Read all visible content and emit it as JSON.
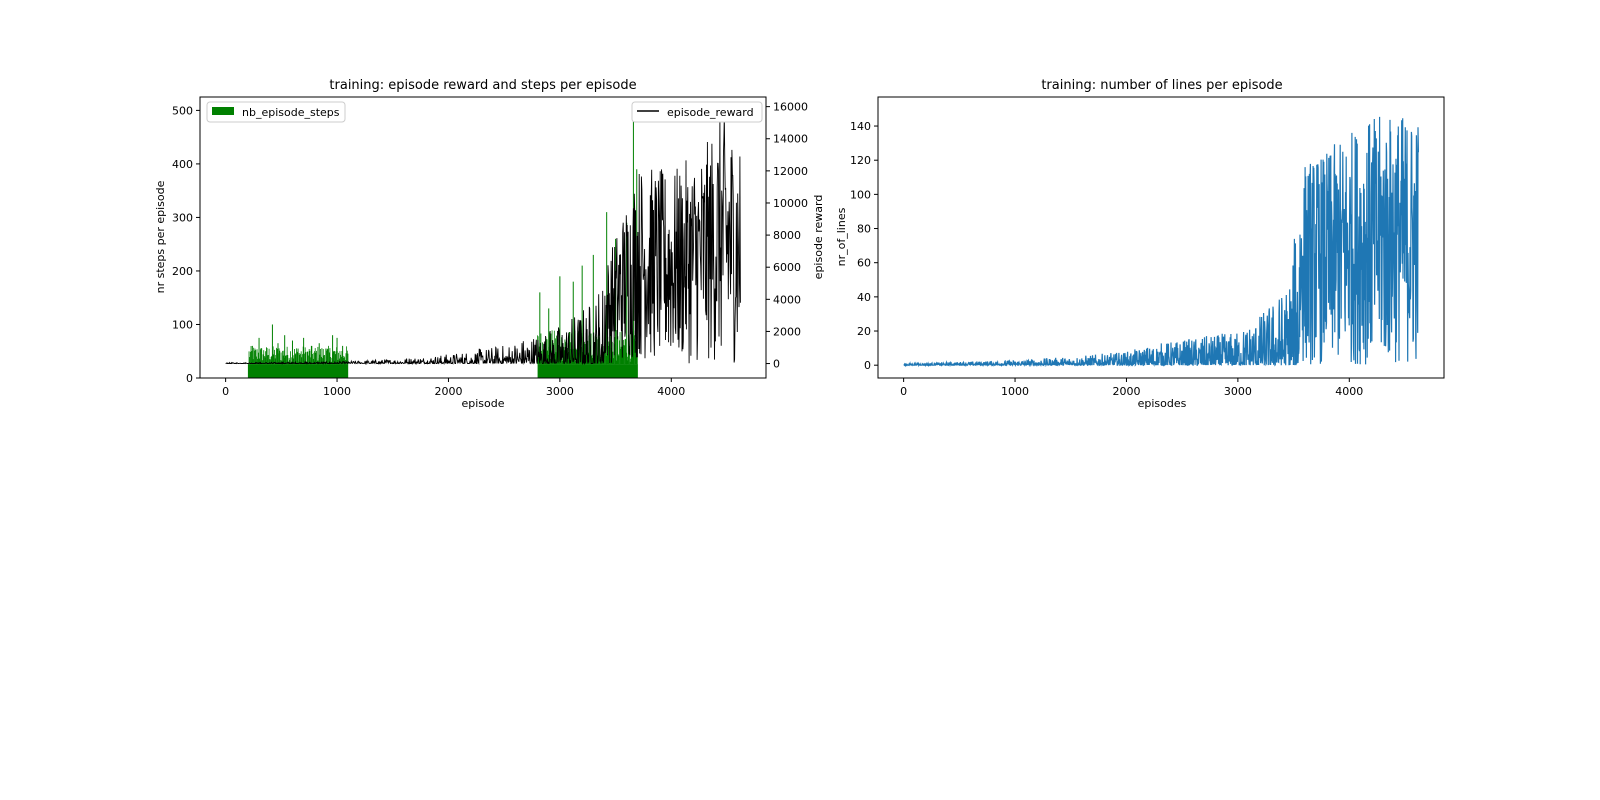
{
  "colors": {
    "steps": "#008000",
    "reward": "#000000",
    "lines": "#1f77b4",
    "axes": "#000000",
    "background": "#ffffff"
  },
  "chart_data": [
    {
      "type": "bar+line",
      "title": "training: episode reward and steps per episode",
      "xlabel": "episode",
      "ylabel_left": "nr steps per episode",
      "ylabel_right": "episode reward",
      "xlim": [
        -230,
        4850
      ],
      "ylim_left": [
        0,
        525
      ],
      "ylim_right": [
        -900,
        16600
      ],
      "xticks": [
        0,
        1000,
        2000,
        3000,
        4000
      ],
      "yticks_left": [
        0,
        100,
        200,
        300,
        400,
        500
      ],
      "yticks_right": [
        0,
        2000,
        4000,
        6000,
        8000,
        10000,
        12000,
        14000,
        16000
      ],
      "legend_left": "upper left",
      "legend_right": "upper right",
      "grid": false,
      "series": [
        {
          "name": "nb_episode_steps",
          "kind": "bar",
          "axis": "left",
          "episodes_range": [
            0,
            4620
          ],
          "visible_bar_ranges": [
            [
              200,
              1100
            ],
            [
              2800,
              3700
            ]
          ],
          "baseline_steps": 26,
          "floor_steps": 0,
          "spikes": [
            {
              "x": 240,
              "y": 60
            },
            {
              "x": 300,
              "y": 75
            },
            {
              "x": 360,
              "y": 50
            },
            {
              "x": 420,
              "y": 100
            },
            {
              "x": 470,
              "y": 65
            },
            {
              "x": 530,
              "y": 80
            },
            {
              "x": 600,
              "y": 70
            },
            {
              "x": 650,
              "y": 55
            },
            {
              "x": 700,
              "y": 75
            },
            {
              "x": 770,
              "y": 60
            },
            {
              "x": 840,
              "y": 65
            },
            {
              "x": 900,
              "y": 55
            },
            {
              "x": 960,
              "y": 80
            },
            {
              "x": 1000,
              "y": 75
            },
            {
              "x": 1050,
              "y": 60
            },
            {
              "x": 2820,
              "y": 160
            },
            {
              "x": 2900,
              "y": 130
            },
            {
              "x": 3000,
              "y": 190
            },
            {
              "x": 3120,
              "y": 180
            },
            {
              "x": 3200,
              "y": 210
            },
            {
              "x": 3300,
              "y": 230
            },
            {
              "x": 3420,
              "y": 310
            },
            {
              "x": 3500,
              "y": 260
            },
            {
              "x": 3600,
              "y": 290
            },
            {
              "x": 3660,
              "y": 490
            },
            {
              "x": 3690,
              "y": 390
            }
          ]
        },
        {
          "name": "episode_reward",
          "kind": "line",
          "axis": "right",
          "envelope": [
            {
              "x": 0,
              "low": 0,
              "high": 60
            },
            {
              "x": 1000,
              "low": 0,
              "high": 120
            },
            {
              "x": 1500,
              "low": 0,
              "high": 300
            },
            {
              "x": 2000,
              "low": 0,
              "high": 600
            },
            {
              "x": 2500,
              "low": 0,
              "high": 1200
            },
            {
              "x": 3000,
              "low": 0,
              "high": 2500
            },
            {
              "x": 3300,
              "low": 0,
              "high": 4200
            },
            {
              "x": 3500,
              "low": 0,
              "high": 8000
            },
            {
              "x": 3700,
              "low": 200,
              "high": 12500
            },
            {
              "x": 4000,
              "low": 0,
              "high": 12000
            },
            {
              "x": 4300,
              "low": 0,
              "high": 13500
            },
            {
              "x": 4450,
              "low": 0,
              "high": 15800
            },
            {
              "x": 4620,
              "low": 0,
              "high": 14000
            }
          ]
        }
      ]
    },
    {
      "type": "line",
      "title": "training: number of lines per episode",
      "xlabel": "episodes",
      "ylabel": "nr_of_lines",
      "xlim": [
        -230,
        4850
      ],
      "ylim": [
        -7.5,
        157
      ],
      "xticks": [
        0,
        1000,
        2000,
        3000,
        4000
      ],
      "yticks": [
        0,
        20,
        40,
        60,
        80,
        100,
        120,
        140
      ],
      "grid": false,
      "series": [
        {
          "kind": "line",
          "envelope": [
            {
              "x": 0,
              "low": 0,
              "high": 1
            },
            {
              "x": 500,
              "low": 0,
              "high": 2
            },
            {
              "x": 1000,
              "low": 0,
              "high": 3
            },
            {
              "x": 1500,
              "low": 0,
              "high": 5
            },
            {
              "x": 2000,
              "low": 0,
              "high": 8
            },
            {
              "x": 2300,
              "low": 0,
              "high": 13
            },
            {
              "x": 2600,
              "low": 0,
              "high": 16
            },
            {
              "x": 3000,
              "low": 0,
              "high": 20
            },
            {
              "x": 3200,
              "low": 0,
              "high": 30
            },
            {
              "x": 3450,
              "low": 0,
              "high": 48
            },
            {
              "x": 3600,
              "low": 0,
              "high": 120
            },
            {
              "x": 3800,
              "low": 0,
              "high": 125
            },
            {
              "x": 4000,
              "low": 0,
              "high": 138
            },
            {
              "x": 4200,
              "low": 0,
              "high": 145
            },
            {
              "x": 4400,
              "low": 0,
              "high": 148
            },
            {
              "x": 4620,
              "low": 0,
              "high": 147
            }
          ]
        }
      ]
    }
  ]
}
